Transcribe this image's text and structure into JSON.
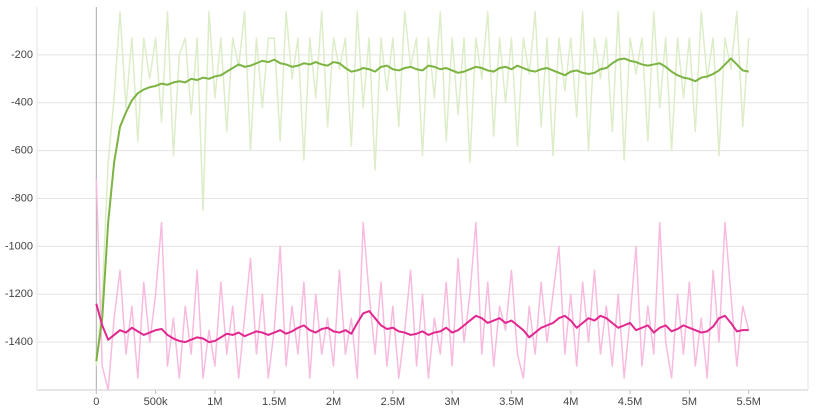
{
  "chart_data": {
    "type": "line",
    "xlim": [
      -500000,
      6000000
    ],
    "ylim": [
      -1600,
      0
    ],
    "xticks": [
      0,
      {
        "value": 500000,
        "label": "500k"
      },
      {
        "value": 1000000,
        "label": "1M"
      },
      {
        "value": 1500000,
        "label": "1.5M"
      },
      {
        "value": 2000000,
        "label": "2M"
      },
      {
        "value": 2500000,
        "label": "2.5M"
      },
      {
        "value": 3000000,
        "label": "3M"
      },
      {
        "value": 3500000,
        "label": "3.5M"
      },
      {
        "value": 4000000,
        "label": "4M"
      },
      {
        "value": 4500000,
        "label": "4.5M"
      },
      {
        "value": 5000000,
        "label": "5M"
      },
      {
        "value": 5500000,
        "label": "5.5M"
      }
    ],
    "yticks": [
      -1400,
      -1200,
      -1000,
      -800,
      -600,
      -400,
      -200
    ],
    "grid": true,
    "x": [
      0,
      50000,
      100000,
      150000,
      200000,
      250000,
      300000,
      350000,
      400000,
      450000,
      500000,
      550000,
      600000,
      650000,
      700000,
      750000,
      800000,
      850000,
      900000,
      950000,
      1000000,
      1050000,
      1100000,
      1150000,
      1200000,
      1250000,
      1300000,
      1350000,
      1400000,
      1450000,
      1500000,
      1550000,
      1600000,
      1650000,
      1700000,
      1750000,
      1800000,
      1850000,
      1900000,
      1950000,
      2000000,
      2050000,
      2100000,
      2150000,
      2200000,
      2250000,
      2300000,
      2350000,
      2400000,
      2450000,
      2500000,
      2550000,
      2600000,
      2650000,
      2700000,
      2750000,
      2800000,
      2850000,
      2900000,
      2950000,
      3000000,
      3050000,
      3100000,
      3150000,
      3200000,
      3250000,
      3300000,
      3350000,
      3400000,
      3450000,
      3500000,
      3550000,
      3600000,
      3650000,
      3700000,
      3750000,
      3800000,
      3850000,
      3900000,
      3950000,
      4000000,
      4050000,
      4100000,
      4150000,
      4200000,
      4250000,
      4300000,
      4350000,
      4400000,
      4450000,
      4500000,
      4550000,
      4600000,
      4650000,
      4700000,
      4750000,
      4800000,
      4850000,
      4900000,
      4950000,
      5000000,
      5050000,
      5100000,
      5150000,
      5200000,
      5250000,
      5300000,
      5350000,
      5400000,
      5450000,
      5500000
    ],
    "series": [
      {
        "color": "#dcedc8",
        "width": 1.5,
        "values": [
          -1500,
          -1200,
          -650,
          -380,
          -20,
          -420,
          -130,
          -560,
          -130,
          -300,
          -130,
          -480,
          -20,
          -620,
          -200,
          -130,
          -450,
          -130,
          -850,
          -20,
          -380,
          -130,
          -520,
          -130,
          -250,
          -20,
          -600,
          -130,
          -420,
          -130,
          -130,
          -560,
          -20,
          -300,
          -130,
          -640,
          -130,
          -380,
          -20,
          -500,
          -130,
          -260,
          -130,
          -580,
          -20,
          -420,
          -130,
          -680,
          -130,
          -350,
          -130,
          -500,
          -20,
          -250,
          -130,
          -620,
          -130,
          -380,
          -20,
          -560,
          -130,
          -450,
          -130,
          -650,
          -130,
          -300,
          -20,
          -540,
          -130,
          -400,
          -130,
          -580,
          -130,
          -280,
          -20,
          -500,
          -130,
          -620,
          -130,
          -350,
          -130,
          -460,
          -20,
          -600,
          -130,
          -300,
          -130,
          -520,
          -20,
          -640,
          -130,
          -280,
          -130,
          -560,
          -20,
          -420,
          -130,
          -600,
          -130,
          -380,
          -130,
          -520,
          -20,
          -300,
          -130,
          -620,
          -130,
          -260,
          -20,
          -500,
          -130
        ]
      },
      {
        "color": "#f8bbdf",
        "width": 1.5,
        "values": [
          -720,
          -1500,
          -1600,
          -1300,
          -1100,
          -1450,
          -1250,
          -1550,
          -1150,
          -1400,
          -1200,
          -900,
          -1500,
          -1300,
          -1550,
          -1250,
          -1450,
          -1100,
          -1550,
          -1350,
          -1500,
          -1150,
          -1450,
          -1250,
          -1550,
          -1300,
          -1050,
          -1450,
          -1200,
          -1550,
          -1350,
          -1000,
          -1500,
          -1250,
          -1450,
          -1150,
          -1550,
          -1200,
          -1450,
          -1300,
          -1500,
          -1100,
          -1450,
          -1300,
          -1550,
          -900,
          -1200,
          -1450,
          -1150,
          -1500,
          -1250,
          -1550,
          -1350,
          -1100,
          -1500,
          -1200,
          -1550,
          -1300,
          -1450,
          -1150,
          -1500,
          -1050,
          -1400,
          -1200,
          -900,
          -1450,
          -1150,
          -1500,
          -1250,
          -1350,
          -1100,
          -1450,
          -1550,
          -1250,
          -1450,
          -1150,
          -1400,
          -1200,
          -1000,
          -1450,
          -1200,
          -1500,
          -1150,
          -1400,
          -1100,
          -1450,
          -1250,
          -1500,
          -1200,
          -1550,
          -1300,
          -1000,
          -1500,
          -1250,
          -1450,
          -900,
          -1400,
          -1550,
          -1200,
          -1450,
          -1150,
          -1500,
          -1300,
          -1550,
          -1100,
          -1400,
          -900,
          -1200,
          -1500,
          -1250,
          -1350
        ]
      },
      {
        "color": "#7cb342",
        "width": 2,
        "values": [
          -1480,
          -1300,
          -900,
          -650,
          -500,
          -440,
          -390,
          -360,
          -345,
          -335,
          -330,
          -320,
          -325,
          -315,
          -310,
          -315,
          -300,
          -305,
          -295,
          -300,
          -290,
          -285,
          -270,
          -255,
          -240,
          -250,
          -245,
          -235,
          -225,
          -230,
          -220,
          -235,
          -240,
          -250,
          -245,
          -235,
          -240,
          -230,
          -240,
          -245,
          -230,
          -235,
          -255,
          -270,
          -265,
          -255,
          -260,
          -270,
          -250,
          -245,
          -260,
          -265,
          -255,
          -250,
          -260,
          -265,
          -245,
          -250,
          -260,
          -255,
          -265,
          -275,
          -270,
          -260,
          -250,
          -255,
          -265,
          -270,
          -255,
          -250,
          -260,
          -245,
          -255,
          -265,
          -270,
          -260,
          -255,
          -265,
          -275,
          -285,
          -270,
          -265,
          -275,
          -280,
          -275,
          -260,
          -255,
          -235,
          -220,
          -215,
          -225,
          -230,
          -240,
          -245,
          -240,
          -235,
          -250,
          -270,
          -285,
          -295,
          -300,
          -310,
          -295,
          -290,
          -280,
          -265,
          -240,
          -215,
          -240,
          -265,
          -270
        ]
      },
      {
        "color": "#e0288f",
        "width": 2,
        "values": [
          -1240,
          -1330,
          -1390,
          -1370,
          -1350,
          -1360,
          -1340,
          -1355,
          -1370,
          -1360,
          -1350,
          -1345,
          -1370,
          -1385,
          -1395,
          -1400,
          -1390,
          -1380,
          -1385,
          -1400,
          -1395,
          -1380,
          -1365,
          -1370,
          -1360,
          -1375,
          -1365,
          -1355,
          -1360,
          -1370,
          -1360,
          -1350,
          -1365,
          -1355,
          -1340,
          -1330,
          -1350,
          -1360,
          -1345,
          -1340,
          -1355,
          -1360,
          -1350,
          -1365,
          -1320,
          -1280,
          -1270,
          -1300,
          -1330,
          -1345,
          -1340,
          -1355,
          -1360,
          -1370,
          -1365,
          -1355,
          -1370,
          -1360,
          -1355,
          -1340,
          -1360,
          -1350,
          -1330,
          -1310,
          -1290,
          -1300,
          -1320,
          -1310,
          -1300,
          -1320,
          -1310,
          -1330,
          -1350,
          -1380,
          -1360,
          -1340,
          -1330,
          -1320,
          -1300,
          -1290,
          -1310,
          -1340,
          -1320,
          -1300,
          -1310,
          -1290,
          -1300,
          -1320,
          -1340,
          -1330,
          -1320,
          -1350,
          -1340,
          -1330,
          -1360,
          -1340,
          -1330,
          -1355,
          -1345,
          -1330,
          -1340,
          -1350,
          -1360,
          -1355,
          -1335,
          -1300,
          -1290,
          -1320,
          -1355,
          -1350,
          -1350
        ]
      }
    ]
  }
}
